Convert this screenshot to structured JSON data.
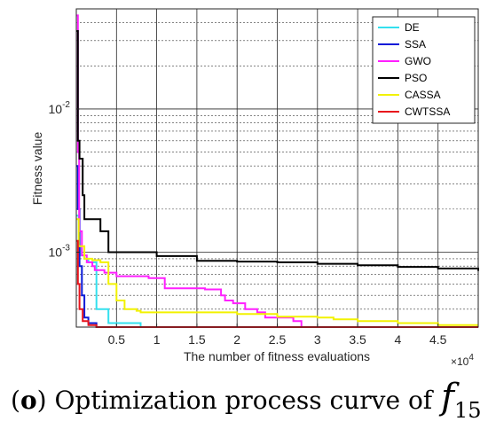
{
  "chart_data": {
    "type": "line",
    "title": "",
    "xlabel": "The number of fitness evaluations",
    "ylabel": "Fitness value",
    "x_multiplier_label": "×10",
    "x_multiplier_exp": "4",
    "x_scale_label": "×10^4",
    "y_scale": "log",
    "xlim": [
      0,
      50000
    ],
    "ylim": [
      0.0003,
      0.05
    ],
    "x_ticks": [
      5000,
      10000,
      15000,
      20000,
      25000,
      30000,
      35000,
      40000,
      45000
    ],
    "x_tick_labels": [
      "0.5",
      "1",
      "1.5",
      "2",
      "2.5",
      "3",
      "3.5",
      "4",
      "4.5"
    ],
    "y_ticks": [
      0.001,
      0.01
    ],
    "y_tick_labels": [
      {
        "base": "10",
        "exp": "-3"
      },
      {
        "base": "10",
        "exp": "-2"
      }
    ],
    "grid": true,
    "legend_position": "top-right",
    "series": [
      {
        "name": "DE",
        "color": "#33e0ee",
        "x": [
          0,
          300,
          600,
          1000,
          1500,
          2500,
          4000,
          8000,
          50000
        ],
        "y": [
          0.0018,
          0.0011,
          0.00095,
          0.0009,
          0.00085,
          0.0004,
          0.00032,
          0.0003,
          0.0003
        ]
      },
      {
        "name": "SSA",
        "color": "#0a1ad8",
        "x": [
          0,
          200,
          400,
          700,
          1000,
          1500,
          2500,
          5000,
          50000
        ],
        "y": [
          0.004,
          0.002,
          0.0008,
          0.0005,
          0.00035,
          0.00032,
          0.0003,
          0.0003,
          0.0003
        ]
      },
      {
        "name": "GWO",
        "color": "#ff1fff",
        "x": [
          0,
          200,
          350,
          700,
          1300,
          2000,
          2300,
          3500,
          5000,
          9000,
          11000,
          16000,
          18000,
          18500,
          19500,
          21000,
          22500,
          23500,
          27000,
          28000,
          50000
        ],
        "y": [
          0.045,
          0.005,
          0.0014,
          0.00095,
          0.00085,
          0.0008,
          0.00075,
          0.00072,
          0.00068,
          0.00066,
          0.00056,
          0.00055,
          0.0005,
          0.00046,
          0.00044,
          0.0004,
          0.00038,
          0.00035,
          0.00033,
          0.0003,
          0.0003
        ]
      },
      {
        "name": "PSO",
        "color": "#000000",
        "x": [
          0,
          200,
          400,
          800,
          1000,
          2000,
          3000,
          4000,
          10000,
          15000,
          20000,
          25000,
          30000,
          35000,
          40000,
          45000,
          50000
        ],
        "y": [
          0.035,
          0.006,
          0.0045,
          0.0025,
          0.0017,
          0.0017,
          0.0014,
          0.001,
          0.00094,
          0.00087,
          0.00086,
          0.00085,
          0.00083,
          0.00081,
          0.00079,
          0.00077,
          0.00074
        ]
      },
      {
        "name": "CASSA",
        "color": "#f2f200",
        "x": [
          0,
          300,
          1000,
          2000,
          3000,
          4000,
          5000,
          6000,
          7500,
          8000,
          10000,
          15000,
          20000,
          25000,
          30000,
          32000,
          35000,
          40000,
          45000,
          50000
        ],
        "y": [
          0.0017,
          0.0011,
          0.0009,
          0.00088,
          0.00085,
          0.0006,
          0.00046,
          0.0004,
          0.00039,
          0.00038,
          0.00038,
          0.00038,
          0.00037,
          0.000355,
          0.00035,
          0.00034,
          0.00033,
          0.00032,
          0.00031,
          0.00031
        ]
      },
      {
        "name": "CWTSSA",
        "color": "#e8141c",
        "x": [
          0,
          200,
          400,
          800,
          1500,
          2500,
          5000,
          50000
        ],
        "y": [
          0.0012,
          0.0006,
          0.0004,
          0.00033,
          0.00031,
          0.0003,
          0.0003,
          0.0003
        ]
      }
    ]
  },
  "caption": {
    "paren_open": "(",
    "letter": "o",
    "paren_close": ")",
    "text": " Optimization process curve of",
    "fn": "f",
    "subscript": "15"
  }
}
